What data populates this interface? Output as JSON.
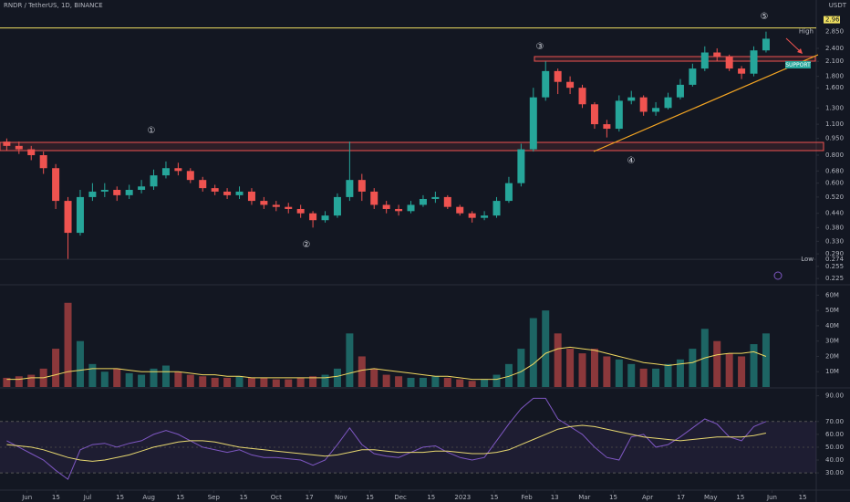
{
  "header": {
    "symbol": "RNDR / TetherUS, 1D, BINANCE",
    "currency": "USDT"
  },
  "chart_data": [
    {
      "type": "candlestick",
      "log": true,
      "up_color": "#26a69a",
      "down_color": "#ef5350",
      "ylim": [
        0.211,
        3.46
      ],
      "yticks": [
        {
          "value": 2.4,
          "label": "2.400"
        },
        {
          "value": 2.1,
          "label": "2.100"
        },
        {
          "value": 1.8,
          "label": "1.800"
        },
        {
          "value": 1.6,
          "label": "1.600"
        },
        {
          "value": 1.3,
          "label": "1.300"
        },
        {
          "value": 1.1,
          "label": "1.100"
        },
        {
          "value": 0.95,
          "label": "0.950"
        },
        {
          "value": 0.8,
          "label": "0.800"
        },
        {
          "value": 0.68,
          "label": "0.680"
        },
        {
          "value": 0.6,
          "label": "0.600"
        },
        {
          "value": 0.52,
          "label": "0.520"
        },
        {
          "value": 0.44,
          "label": "0.440"
        },
        {
          "value": 0.38,
          "label": "0.380"
        },
        {
          "value": 0.33,
          "label": "0.330"
        },
        {
          "value": 0.29,
          "label": "0.290"
        },
        {
          "value": 0.255,
          "label": "0.255"
        },
        {
          "value": 0.225,
          "label": "0.225"
        }
      ],
      "xlim": [
        -0.55,
        66.1
      ],
      "xticks": [
        {
          "value": 1.66,
          "label": "Jun"
        },
        {
          "value": 4.02,
          "label": "15"
        },
        {
          "value": 6.6,
          "label": "Jul"
        },
        {
          "value": 9.25,
          "label": "15"
        },
        {
          "value": 11.6,
          "label": "Aug"
        },
        {
          "value": 14.18,
          "label": "15"
        },
        {
          "value": 16.9,
          "label": "Sep"
        },
        {
          "value": 19.34,
          "label": "15"
        },
        {
          "value": 22.0,
          "label": "Oct"
        },
        {
          "value": 24.71,
          "label": "17"
        },
        {
          "value": 27.29,
          "label": "Nov"
        },
        {
          "value": 29.65,
          "label": "15"
        },
        {
          "value": 32.15,
          "label": "Dec"
        },
        {
          "value": 34.66,
          "label": "15"
        },
        {
          "value": 37.23,
          "label": "2023"
        },
        {
          "value": 39.81,
          "label": "15"
        },
        {
          "value": 42.46,
          "label": "Feb"
        },
        {
          "value": 44.74,
          "label": "13"
        },
        {
          "value": 47.17,
          "label": "Mar"
        },
        {
          "value": 49.53,
          "label": "15"
        },
        {
          "value": 52.33,
          "label": "Apr"
        },
        {
          "value": 55.05,
          "label": "17"
        },
        {
          "value": 57.48,
          "label": "May"
        },
        {
          "value": 59.91,
          "label": "15"
        },
        {
          "value": 62.49,
          "label": "Jun"
        },
        {
          "value": 64.99,
          "label": "15"
        }
      ],
      "open": [
        0.92,
        0.88,
        0.85,
        0.8,
        0.7,
        0.5,
        0.36,
        0.52,
        0.55,
        0.56,
        0.53,
        0.56,
        0.58,
        0.65,
        0.7,
        0.68,
        0.62,
        0.57,
        0.55,
        0.53,
        0.55,
        0.5,
        0.48,
        0.47,
        0.46,
        0.44,
        0.41,
        0.43,
        0.52,
        0.62,
        0.55,
        0.48,
        0.46,
        0.45,
        0.48,
        0.51,
        0.52,
        0.47,
        0.44,
        0.42,
        0.43,
        0.5,
        0.6,
        0.85,
        1.45,
        1.9,
        1.7,
        1.6,
        1.35,
        1.1,
        1.05,
        1.4,
        1.45,
        1.25,
        1.3,
        1.45,
        1.65,
        1.95,
        2.3,
        2.2,
        1.95,
        1.85,
        2.35
      ],
      "high": [
        0.95,
        0.92,
        0.88,
        0.83,
        0.73,
        0.52,
        0.56,
        0.6,
        0.6,
        0.58,
        0.59,
        0.62,
        0.69,
        0.75,
        0.74,
        0.7,
        0.64,
        0.59,
        0.57,
        0.58,
        0.57,
        0.52,
        0.5,
        0.49,
        0.48,
        0.45,
        0.45,
        0.54,
        0.92,
        0.66,
        0.57,
        0.5,
        0.48,
        0.5,
        0.53,
        0.55,
        0.53,
        0.48,
        0.45,
        0.45,
        0.52,
        0.64,
        0.9,
        1.6,
        2.1,
        1.95,
        1.8,
        1.65,
        1.38,
        1.15,
        1.48,
        1.55,
        1.48,
        1.38,
        1.52,
        1.75,
        2.05,
        2.45,
        2.4,
        2.25,
        2.0,
        2.45,
        2.85
      ],
      "low": [
        0.84,
        0.81,
        0.76,
        0.66,
        0.46,
        0.274,
        0.35,
        0.5,
        0.52,
        0.5,
        0.51,
        0.54,
        0.56,
        0.63,
        0.65,
        0.6,
        0.55,
        0.53,
        0.51,
        0.51,
        0.48,
        0.46,
        0.45,
        0.44,
        0.42,
        0.38,
        0.4,
        0.42,
        0.5,
        0.5,
        0.46,
        0.44,
        0.43,
        0.44,
        0.47,
        0.49,
        0.46,
        0.43,
        0.4,
        0.41,
        0.42,
        0.49,
        0.58,
        0.83,
        1.4,
        1.5,
        1.5,
        1.3,
        1.05,
        0.96,
        1.02,
        1.35,
        1.2,
        1.2,
        1.28,
        1.42,
        1.62,
        1.9,
        2.1,
        1.9,
        1.75,
        1.8,
        2.3
      ],
      "close": [
        0.88,
        0.85,
        0.8,
        0.7,
        0.5,
        0.36,
        0.52,
        0.55,
        0.56,
        0.53,
        0.56,
        0.58,
        0.65,
        0.7,
        0.68,
        0.62,
        0.57,
        0.55,
        0.53,
        0.55,
        0.5,
        0.48,
        0.47,
        0.46,
        0.44,
        0.41,
        0.43,
        0.52,
        0.62,
        0.55,
        0.48,
        0.46,
        0.45,
        0.48,
        0.51,
        0.52,
        0.47,
        0.44,
        0.42,
        0.43,
        0.5,
        0.6,
        0.85,
        1.45,
        1.9,
        1.7,
        1.6,
        1.35,
        1.1,
        1.05,
        1.4,
        1.45,
        1.25,
        1.3,
        1.45,
        1.65,
        1.95,
        2.3,
        2.2,
        1.95,
        1.85,
        2.35,
        2.65
      ],
      "level": {
        "value": 2.961,
        "label": "2.961",
        "color": "#f0e060"
      },
      "high_marker": {
        "label": "High",
        "value": 2.85,
        "value_label": "2.850"
      },
      "low_marker": {
        "label": "Low",
        "value": 0.274,
        "value_label": "0.274"
      },
      "annotations": [
        "①",
        "②",
        "③",
        "④",
        "⑤"
      ],
      "support_label": "SUPPORT"
    },
    {
      "type": "bar",
      "ylim": [
        0,
        65
      ],
      "yticks": [
        {
          "value": 10,
          "label": "10M"
        },
        {
          "value": 20,
          "label": "20M"
        },
        {
          "value": 30,
          "label": "30M"
        },
        {
          "value": 40,
          "label": "40M"
        },
        {
          "value": 50,
          "label": "50M"
        },
        {
          "value": 60,
          "label": "60M"
        }
      ],
      "values": [
        6,
        7,
        8,
        12,
        25,
        55,
        30,
        15,
        10,
        12,
        9,
        8,
        12,
        14,
        10,
        8,
        7,
        6,
        6,
        7,
        6,
        6,
        5,
        5,
        6,
        7,
        8,
        12,
        35,
        20,
        12,
        8,
        7,
        6,
        6,
        7,
        6,
        5,
        4,
        5,
        8,
        15,
        25,
        45,
        50,
        35,
        25,
        22,
        25,
        20,
        18,
        15,
        12,
        12,
        15,
        18,
        25,
        38,
        30,
        22,
        20,
        28,
        35
      ],
      "ma_values": [
        5,
        5,
        6,
        6,
        8,
        10,
        11,
        12,
        12,
        12,
        11,
        10,
        10,
        10,
        10,
        9,
        8,
        8,
        7,
        7,
        6,
        6,
        6,
        6,
        6,
        6,
        6,
        7,
        9,
        11,
        12,
        11,
        10,
        9,
        8,
        7,
        7,
        6,
        5,
        5,
        5,
        7,
        10,
        15,
        22,
        25,
        26,
        25,
        24,
        22,
        20,
        18,
        16,
        15,
        14,
        15,
        16,
        19,
        21,
        22,
        22,
        23,
        20
      ],
      "ma_color": "#f0d860"
    },
    {
      "type": "line",
      "ylim": [
        18,
        94
      ],
      "color": "#7e57c2",
      "ma_color": "#e8d870",
      "band": [
        30,
        70
      ],
      "midline": 50,
      "yticks": [
        {
          "value": 30,
          "label": "30.00"
        },
        {
          "value": 40,
          "label": "40.00"
        },
        {
          "value": 50,
          "label": "50.00"
        },
        {
          "value": 60,
          "label": "60.00"
        },
        {
          "value": 70,
          "label": "70.00"
        },
        {
          "value": 90,
          "label": "90.00"
        }
      ],
      "values": [
        55,
        50,
        45,
        40,
        32,
        25,
        48,
        52,
        53,
        50,
        53,
        55,
        60,
        63,
        60,
        55,
        50,
        48,
        46,
        48,
        44,
        42,
        42,
        41,
        40,
        36,
        40,
        52,
        65,
        52,
        45,
        43,
        42,
        46,
        50,
        51,
        46,
        42,
        40,
        42,
        55,
        68,
        80,
        88,
        88,
        72,
        66,
        60,
        50,
        42,
        40,
        58,
        60,
        50,
        52,
        58,
        65,
        72,
        68,
        58,
        55,
        66,
        70
      ],
      "ma_values": [
        52,
        51,
        50,
        48,
        45,
        42,
        40,
        39,
        40,
        42,
        44,
        47,
        50,
        52,
        54,
        55,
        55,
        54,
        52,
        50,
        49,
        48,
        47,
        46,
        45,
        44,
        43,
        44,
        46,
        48,
        48,
        47,
        46,
        46,
        46,
        47,
        47,
        46,
        45,
        45,
        46,
        48,
        52,
        56,
        60,
        64,
        66,
        67,
        66,
        64,
        62,
        60,
        58,
        57,
        56,
        55,
        56,
        57,
        58,
        58,
        58,
        59,
        61
      ]
    }
  ]
}
